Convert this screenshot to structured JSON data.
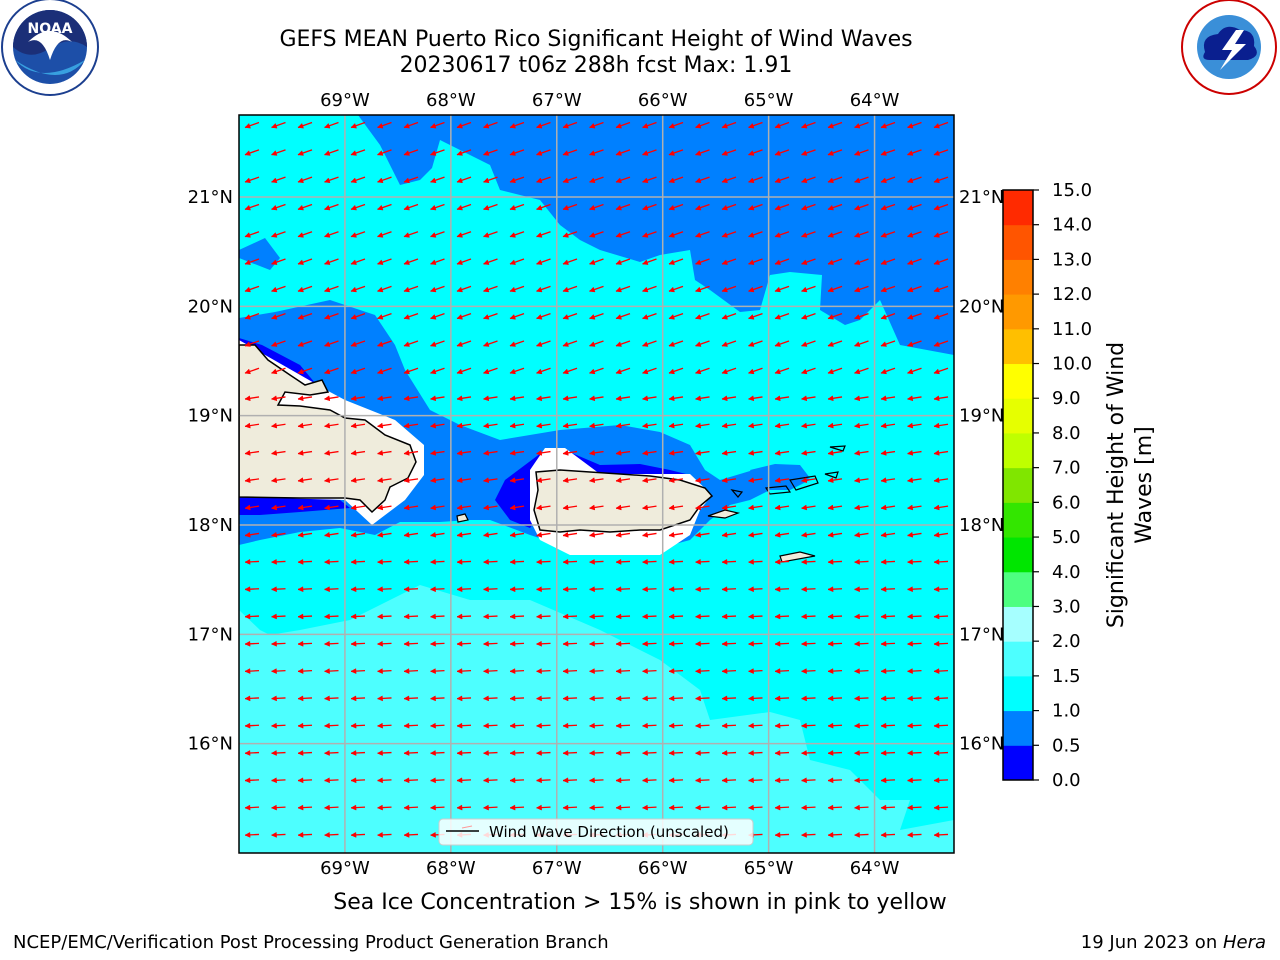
{
  "title_line1": "GEFS MEAN Puerto Rico Significant Height of Wind Waves",
  "title_line2": "20230617 t06z 288h fcst   Max: 1.91",
  "note": "Sea Ice Concentration > 15% is shown in pink to yellow",
  "footer_left": "NCEP/EMC/Verification Post Processing Product Generation Branch",
  "footer_right_date": "19 Jun 2023 on ",
  "footer_right_host": "Hera",
  "legend_label": "Wind Wave Direction (unscaled)",
  "colorbar_title_line1": "Significant Height of Wind",
  "colorbar_title_line2": "Waves [m]",
  "logos": {
    "left": "noaa-logo",
    "right": "nws-logo"
  },
  "map": {
    "lon_range": [
      -70,
      -63.25
    ],
    "lat_range": [
      15,
      21.75
    ],
    "lon_ticks": [
      -69,
      -68,
      -67,
      -66,
      -65,
      -64
    ],
    "lon_tick_labels": [
      "69°W",
      "68°W",
      "67°W",
      "66°W",
      "65°W",
      "64°W"
    ],
    "lat_ticks": [
      16,
      17,
      18,
      19,
      20,
      21
    ],
    "lat_tick_labels": [
      "16°N",
      "17°N",
      "18°N",
      "19°N",
      "20°N",
      "21°N"
    ],
    "arrow_color": "#ff0000",
    "land_color": "#efecdc"
  },
  "colorbar": {
    "levels": [
      "0.0",
      "0.5",
      "1.0",
      "1.5",
      "2.0",
      "3.0",
      "4.0",
      "5.0",
      "6.0",
      "7.0",
      "8.0",
      "9.0",
      "10.0",
      "11.0",
      "12.0",
      "13.0",
      "14.0",
      "15.0"
    ],
    "colors": [
      "#0000ff",
      "#0080ff",
      "#00ffff",
      "#4dffff",
      "#a6ffff",
      "#4dff80",
      "#00e600",
      "#33e600",
      "#80e600",
      "#bfff00",
      "#e6ff00",
      "#ffff00",
      "#ffbf00",
      "#ff9900",
      "#ff8000",
      "#ff5500",
      "#ff2a00",
      "#ff0000"
    ]
  },
  "chart_data": {
    "type": "heatmap",
    "title": "GEFS MEAN Puerto Rico Significant Height of Wind Waves",
    "subtitle": "20230617 t06z 288h fcst   Max: 1.91",
    "xlabel": "",
    "ylabel": "",
    "colorbar_label": "Significant Height of Wind Waves [m]",
    "x_range": [
      -70,
      -63.25
    ],
    "y_range": [
      15,
      21.75
    ],
    "value_max": 1.91,
    "grid": true,
    "legend": "bottom-center",
    "arrow_direction": "toward west-southwest"
  }
}
